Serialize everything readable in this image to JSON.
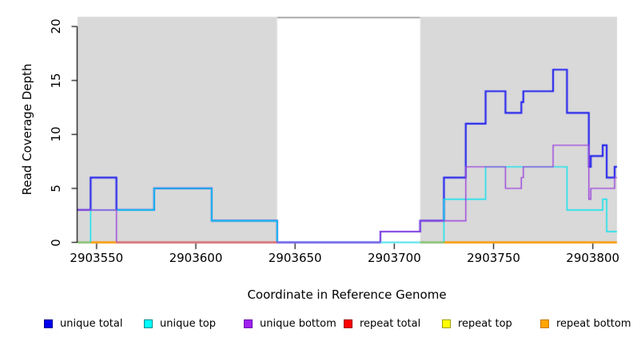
{
  "chart_data": {
    "type": "line",
    "subtype": "step-coverage",
    "title": "",
    "xlabel": "Coordinate in Reference Genome",
    "ylabel": "Read Coverage Depth",
    "x_domain": [
      2903540.4,
      2903812.2
    ],
    "y_domain": [
      0,
      20.9
    ],
    "x_ticks": [
      2903550,
      2903600,
      2903650,
      2903700,
      2903750,
      2903800
    ],
    "y_ticks": [
      0,
      5,
      10,
      15,
      20
    ],
    "grid": false,
    "legend_position": "bottom",
    "background": {
      "shaded_color": "#d9d9d9",
      "shaded_regions": [
        [
          2903540.4,
          2903641
        ],
        [
          2903713,
          2903812.2
        ]
      ],
      "gap_region": [
        2903641,
        2903713
      ],
      "gap_fill": "#ffffff",
      "gap_top_border_color": "#a9a9a9"
    },
    "series": [
      {
        "name": "unique total",
        "color": "#2424ee",
        "width": 2.2,
        "points": [
          [
            2903540.4,
            3
          ],
          [
            2903547,
            6
          ],
          [
            2903560,
            3
          ],
          [
            2903579,
            5
          ],
          [
            2903608,
            2
          ],
          [
            2903641,
            0
          ],
          [
            2903693,
            1
          ],
          [
            2903713,
            2
          ],
          [
            2903725,
            6
          ],
          [
            2903736,
            11
          ],
          [
            2903746,
            14
          ],
          [
            2903756,
            12
          ],
          [
            2903764,
            13
          ],
          [
            2903765,
            14
          ],
          [
            2903780,
            16
          ],
          [
            2903787,
            12
          ],
          [
            2903798,
            7
          ],
          [
            2903799,
            8
          ],
          [
            2903805,
            9
          ],
          [
            2903807,
            6
          ],
          [
            2903811,
            7
          ]
        ],
        "end": 2903812.2
      },
      {
        "name": "unique top",
        "color": "#00e4ee",
        "width": 1.4,
        "points": [
          [
            2903540.4,
            0
          ],
          [
            2903547,
            3
          ],
          [
            2903579,
            5
          ],
          [
            2903608,
            2
          ],
          [
            2903641,
            0
          ],
          [
            2903725,
            4
          ],
          [
            2903746,
            7
          ],
          [
            2903787,
            3
          ],
          [
            2903805,
            4
          ],
          [
            2903807,
            1
          ]
        ],
        "end": 2903812.2
      },
      {
        "name": "unique bottom",
        "color": "#9b40dd",
        "width": 1.4,
        "points": [
          [
            2903540.4,
            3
          ],
          [
            2903560,
            0
          ],
          [
            2903693,
            1
          ],
          [
            2903713,
            2
          ],
          [
            2903736,
            7
          ],
          [
            2903756,
            5
          ],
          [
            2903764,
            6
          ],
          [
            2903765,
            7
          ],
          [
            2903780,
            9
          ],
          [
            2903798,
            4
          ],
          [
            2903799,
            5
          ],
          [
            2903811,
            6
          ]
        ],
        "end": 2903812.2
      },
      {
        "name": "repeat total",
        "color": "#e02020",
        "width": 1.8,
        "points": [
          [
            2903540.4,
            0
          ]
        ],
        "end": 2903812.2
      },
      {
        "name": "repeat top",
        "color": "#ffff00",
        "width": 1.4,
        "points": [
          [
            2903540.4,
            0
          ]
        ],
        "end": 2903812.2
      },
      {
        "name": "repeat bottom",
        "color": "#ffa500",
        "width": 1.4,
        "points": [
          [
            2903540.4,
            0
          ]
        ],
        "end": 2903812.2
      }
    ],
    "baseline_overlaps": [
      {
        "from": 2903540.4,
        "to": 2903547,
        "color": "#79d68c"
      },
      {
        "from": 2903547,
        "to": 2903560,
        "color": "#ffa500"
      },
      {
        "from": 2903560,
        "to": 2903641,
        "color": "#d76d8f"
      },
      {
        "from": 2903641,
        "to": 2903693,
        "color": "#7a5ce0"
      },
      {
        "from": 2903693,
        "to": 2903713,
        "color": "#4adce8"
      },
      {
        "from": 2903713,
        "to": 2903725,
        "color": "#79d68c"
      },
      {
        "from": 2903725,
        "to": 2903812.2,
        "color": "#ffa500"
      }
    ]
  },
  "legend": {
    "items": [
      {
        "label": "unique total",
        "fill": "#0000ee",
        "border": "#000090"
      },
      {
        "label": "unique top",
        "fill": "#00ffff",
        "border": "#008b8b"
      },
      {
        "label": "unique bottom",
        "fill": "#a020f0",
        "border": "#6a0dad"
      },
      {
        "label": "repeat total",
        "fill": "#ff0000",
        "border": "#a00000"
      },
      {
        "label": "repeat top",
        "fill": "#ffff00",
        "border": "#a0a000"
      },
      {
        "label": "repeat bottom",
        "fill": "#ffa500",
        "border": "#c87800"
      }
    ]
  }
}
